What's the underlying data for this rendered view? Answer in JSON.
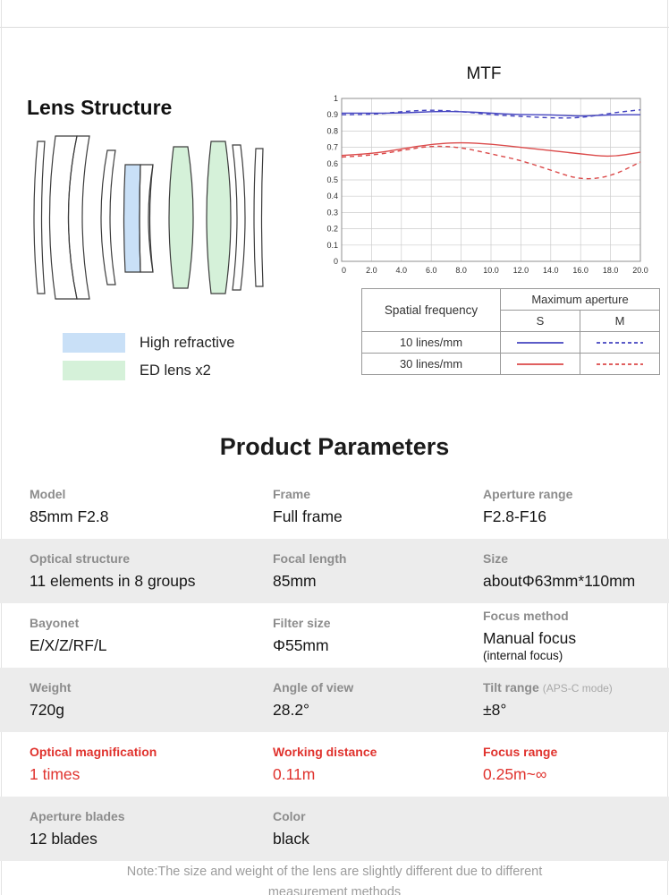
{
  "lens_structure": {
    "title": "Lens Structure",
    "legend": [
      {
        "label": "High refractive",
        "color": "#c9e0f7"
      },
      {
        "label": "ED lens x2",
        "color": "#d5f1d9"
      }
    ]
  },
  "chart_data": {
    "type": "line",
    "title": "MTF",
    "xlim": [
      0,
      20
    ],
    "ylim": [
      0,
      1
    ],
    "grid": true,
    "legend_position": "table-below",
    "x": [
      0,
      2,
      4,
      6,
      8,
      10,
      12,
      14,
      16,
      18,
      20
    ],
    "x_tick_labels": [
      "0",
      "2.0",
      "4.0",
      "6.0",
      "8.0",
      "10.0",
      "12.0",
      "14.0",
      "16.0",
      "18.0",
      "20.0"
    ],
    "y_ticks": [
      0,
      0.1,
      0.2,
      0.3,
      0.4,
      0.5,
      0.6,
      0.7,
      0.8,
      0.9,
      1
    ],
    "y_tick_labels": [
      "0",
      "0.1",
      "0.2",
      "0.3",
      "0.4",
      "0.5",
      "0.6",
      "0.7",
      "0.8",
      "0.9",
      "1"
    ],
    "series": [
      {
        "name": "10 lines/mm S",
        "color": "#4444c0",
        "dash": "solid",
        "values": [
          0.91,
          0.91,
          0.91,
          0.92,
          0.92,
          0.91,
          0.9,
          0.9,
          0.89,
          0.9,
          0.9
        ]
      },
      {
        "name": "10 lines/mm M",
        "color": "#4444c0",
        "dash": "dashed",
        "values": [
          0.9,
          0.9,
          0.92,
          0.93,
          0.92,
          0.9,
          0.89,
          0.88,
          0.88,
          0.91,
          0.93
        ]
      },
      {
        "name": "30 lines/mm S",
        "color": "#db4a4a",
        "dash": "solid",
        "values": [
          0.65,
          0.66,
          0.69,
          0.72,
          0.73,
          0.72,
          0.7,
          0.68,
          0.66,
          0.64,
          0.67
        ]
      },
      {
        "name": "30 lines/mm M",
        "color": "#db4a4a",
        "dash": "dashed",
        "values": [
          0.64,
          0.65,
          0.68,
          0.71,
          0.7,
          0.66,
          0.62,
          0.56,
          0.5,
          0.52,
          0.61
        ]
      }
    ]
  },
  "mtf_table": {
    "spatial_frequency_header": "Spatial frequency",
    "max_aperture_header": "Maximum aperture",
    "col_s": "S",
    "col_m": "M",
    "rows": [
      {
        "label": "10 lines/mm",
        "color": "#4444c0"
      },
      {
        "label": "30 lines/mm",
        "color": "#db4a4a"
      }
    ]
  },
  "parameters": {
    "title": "Product Parameters",
    "rows": [
      {
        "cells": [
          {
            "label": "Model",
            "value": "85mm F2.8"
          },
          {
            "label": "Frame",
            "value": "Full frame"
          },
          {
            "label": "Aperture range",
            "value": "F2.8-F16"
          }
        ]
      },
      {
        "cells": [
          {
            "label": "Optical structure",
            "value": "11 elements in 8 groups"
          },
          {
            "label": "Focal length",
            "value": "85mm"
          },
          {
            "label": "Size",
            "value": "aboutΦ63mm*110mm"
          }
        ]
      },
      {
        "cells": [
          {
            "label": "Bayonet",
            "value": "E/X/Z/RF/L"
          },
          {
            "label": "Filter size",
            "value": "Φ55mm"
          },
          {
            "label": "Focus method",
            "value": "Manual focus",
            "value_sub": "(internal focus)"
          }
        ]
      },
      {
        "cells": [
          {
            "label": "Weight",
            "value": "720g"
          },
          {
            "label": "Angle of view",
            "value": "28.2°"
          },
          {
            "label": "Tilt range",
            "label_suffix": "(APS-C mode)",
            "value": "±8°"
          }
        ]
      },
      {
        "cells": [
          {
            "label": "Optical magnification",
            "value": "1 times"
          },
          {
            "label": "Working distance",
            "value": "0.11m"
          },
          {
            "label": "Focus range",
            "value": "0.25m~∞"
          }
        ]
      },
      {
        "cells": [
          {
            "label": "Aperture blades",
            "value": "12 blades"
          },
          {
            "label": "Color",
            "value": "black"
          },
          {
            "label": "",
            "value": ""
          }
        ]
      }
    ]
  },
  "note": {
    "line1": "Note:The size and weight of the lens are slightly different due to different",
    "line2": "measurement methods"
  }
}
